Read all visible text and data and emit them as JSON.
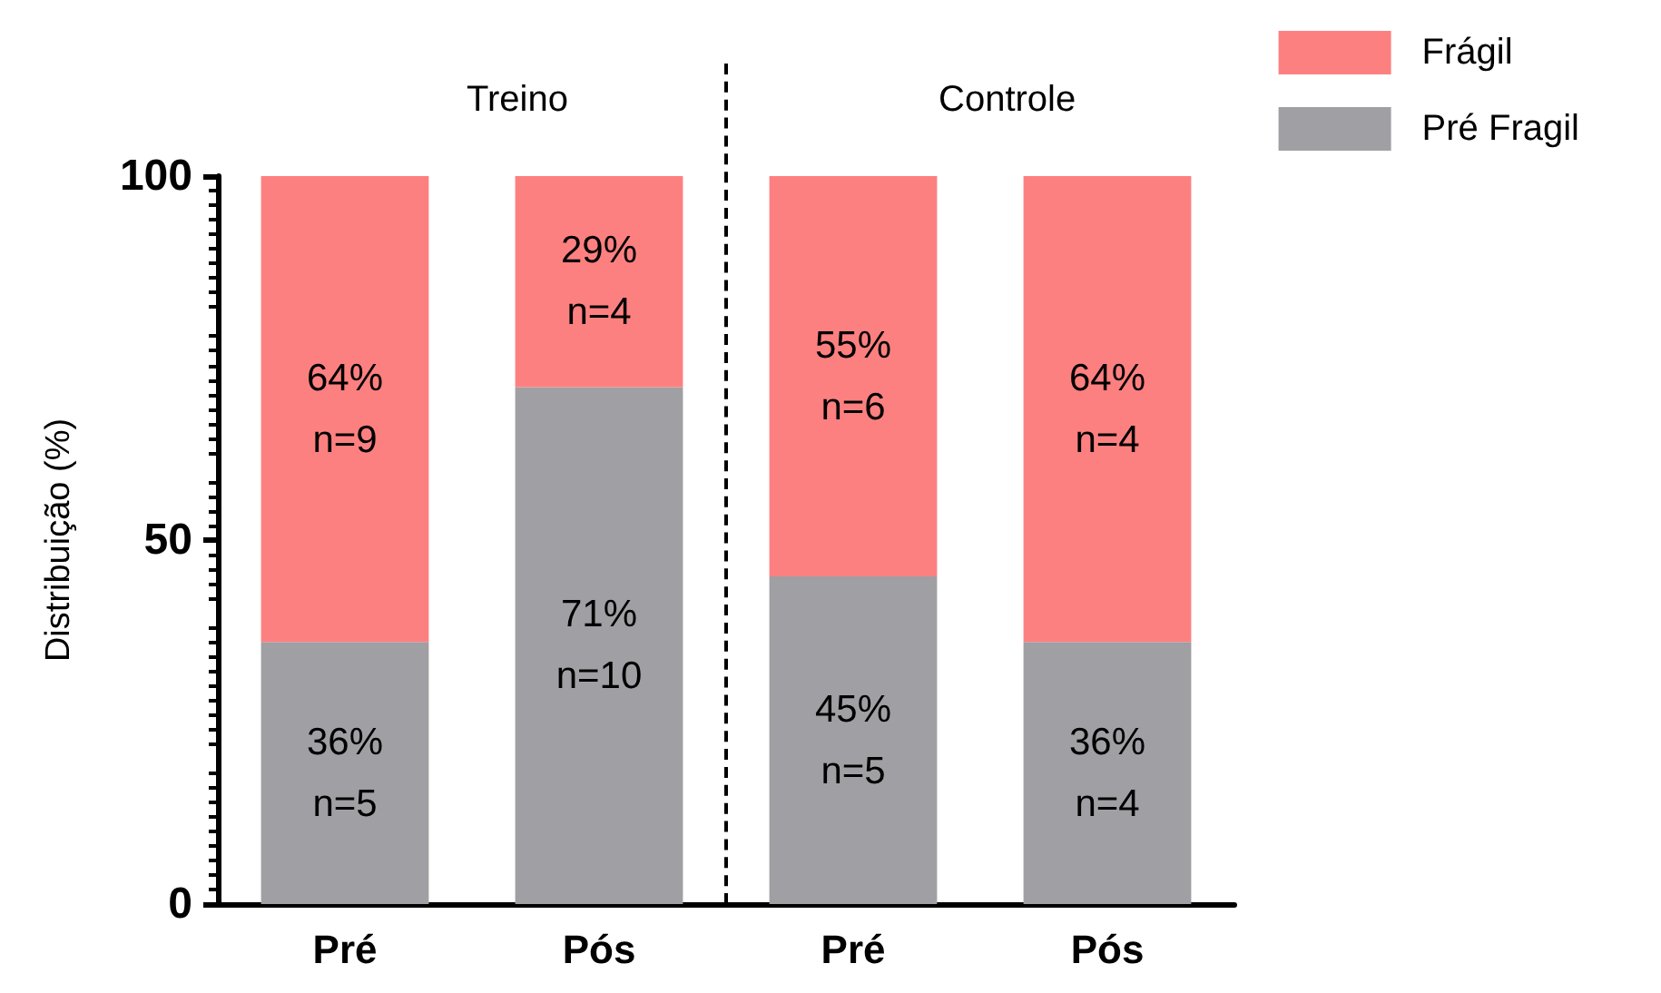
{
  "chart_data": {
    "type": "bar",
    "stacked": true,
    "ylabel": "Distribuição (%)",
    "categories": [
      "Pré",
      "Pós",
      "Pré",
      "Pós"
    ],
    "series": [
      {
        "name": "Pré Fragil",
        "color": "#a09fa4",
        "values": [
          36,
          71,
          45,
          36
        ],
        "value_labels": [
          "36%\nn=5",
          "71%\nn=10",
          "45%\nn=5",
          "36%\nn=4"
        ]
      },
      {
        "name": "Frágil",
        "color": "#fd8080",
        "values": [
          64,
          29,
          55,
          64
        ],
        "value_labels": [
          "64%\nn=9",
          "29%\nn=4",
          "55%\nn=6",
          "64%\nn=4"
        ]
      }
    ],
    "ylim": [
      0,
      100
    ],
    "yticks": [
      0,
      50,
      100
    ],
    "legend": "top right",
    "annotations": [
      "Treino",
      "Controle"
    ]
  }
}
